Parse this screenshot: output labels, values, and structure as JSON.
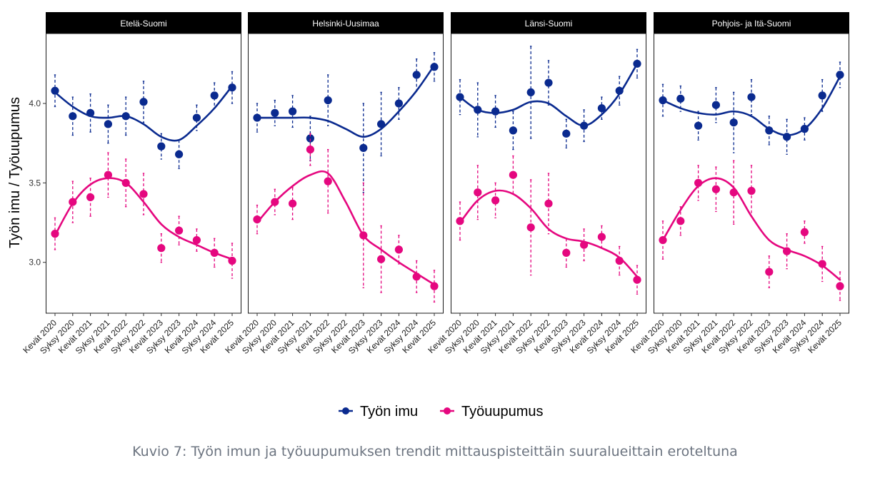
{
  "chart_data": {
    "type": "line",
    "ylabel": "Työn imu / Työuupumus",
    "xlabel": "",
    "ylim": [
      2.68,
      4.44
    ],
    "yticks": [
      3.0,
      3.5,
      4.0
    ],
    "ytick_labels": [
      "3.0",
      "3.5",
      "4.0"
    ],
    "grid": false,
    "legend_position": "bottom",
    "categories": [
      "Kevät 2020",
      "Syksy 2020",
      "Kevät 2021",
      "Syksy 2021",
      "Kevät 2022",
      "Syksy 2022",
      "Kevät 2023",
      "Syksy 2023",
      "Kevät 2024",
      "Syksy 2024",
      "Kevät 2025"
    ],
    "legend": [
      {
        "name": "Työn imu",
        "color": "#0a2a8f"
      },
      {
        "name": "Työuupumus",
        "color": "#e5077f"
      }
    ],
    "panels": [
      {
        "title": "Etelä-Suomi",
        "series": [
          {
            "name": "Työn imu",
            "values": [
              4.08,
              3.92,
              3.94,
              3.87,
              3.92,
              4.01,
              3.73,
              3.68,
              3.91,
              4.05,
              4.1
            ],
            "ci_half": [
              0.1,
              0.12,
              0.12,
              0.12,
              0.12,
              0.13,
              0.08,
              0.09,
              0.08,
              0.08,
              0.1
            ],
            "smooth": [
              4.07,
              3.98,
              3.92,
              3.91,
              3.92,
              3.87,
              3.79,
              3.77,
              3.86,
              3.97,
              4.11
            ]
          },
          {
            "name": "Työuupumus",
            "values": [
              3.18,
              3.38,
              3.41,
              3.55,
              3.5,
              3.43,
              3.09,
              3.2,
              3.14,
              3.06,
              3.01
            ],
            "ci_half": [
              0.1,
              0.13,
              0.12,
              0.14,
              0.15,
              0.13,
              0.09,
              0.09,
              0.07,
              0.09,
              0.11
            ],
            "smooth": [
              3.17,
              3.37,
              3.49,
              3.53,
              3.5,
              3.38,
              3.24,
              3.16,
              3.11,
              3.06,
              3.02
            ]
          }
        ]
      },
      {
        "title": "Helsinki-Uusimaa",
        "series": [
          {
            "name": "Työn imu",
            "values": [
              3.91,
              3.94,
              3.95,
              3.78,
              4.02,
              null,
              3.72,
              3.87,
              4.0,
              4.18,
              4.23
            ],
            "ci_half": [
              0.09,
              0.08,
              0.1,
              0.14,
              0.16,
              null,
              0.28,
              0.2,
              0.1,
              0.1,
              0.09
            ],
            "smooth": [
              3.91,
              3.91,
              3.91,
              3.91,
              3.89,
              3.84,
              3.79,
              3.84,
              3.95,
              4.08,
              4.24
            ]
          },
          {
            "name": "Työuupumus",
            "values": [
              3.27,
              3.38,
              3.37,
              3.71,
              3.51,
              null,
              3.17,
              3.02,
              3.08,
              2.91,
              2.85
            ],
            "ci_half": [
              0.09,
              0.08,
              0.1,
              0.1,
              0.2,
              null,
              0.33,
              0.21,
              0.09,
              0.1,
              0.1
            ],
            "smooth": [
              3.25,
              3.38,
              3.48,
              3.55,
              3.56,
              3.38,
              3.17,
              3.08,
              3.0,
              2.93,
              2.86
            ]
          }
        ]
      },
      {
        "title": "Länsi-Suomi",
        "series": [
          {
            "name": "Työn imu",
            "values": [
              4.04,
              3.96,
              3.95,
              3.83,
              4.07,
              4.13,
              3.81,
              3.86,
              3.97,
              4.08,
              4.25
            ],
            "ci_half": [
              0.11,
              0.17,
              0.1,
              0.12,
              0.29,
              0.14,
              0.09,
              0.1,
              0.07,
              0.09,
              0.09
            ],
            "smooth": [
              4.04,
              3.96,
              3.94,
              3.96,
              4.01,
              4.0,
              3.92,
              3.86,
              3.93,
              4.06,
              4.25
            ]
          },
          {
            "name": "Työuupumus",
            "values": [
              3.26,
              3.44,
              3.39,
              3.55,
              3.22,
              3.37,
              3.06,
              3.11,
              3.16,
              3.01,
              2.89
            ],
            "ci_half": [
              0.12,
              0.17,
              0.11,
              0.12,
              0.3,
              0.19,
              0.09,
              0.1,
              0.07,
              0.09,
              0.09
            ],
            "smooth": [
              3.25,
              3.39,
              3.45,
              3.43,
              3.34,
              3.21,
              3.15,
              3.13,
              3.09,
              3.03,
              2.91
            ]
          }
        ]
      },
      {
        "title": "Pohjois- ja Itä-Suomi",
        "series": [
          {
            "name": "Työn imu",
            "values": [
              4.02,
              4.03,
              3.86,
              3.99,
              3.88,
              4.04,
              3.83,
              3.79,
              3.84,
              4.05,
              4.18
            ],
            "ci_half": [
              0.1,
              0.08,
              0.09,
              0.11,
              0.19,
              0.11,
              0.09,
              0.11,
              0.07,
              0.1,
              0.08
            ],
            "smooth": [
              4.02,
              3.97,
              3.94,
              3.93,
              3.95,
              3.92,
              3.84,
              3.8,
              3.84,
              3.97,
              4.17
            ]
          },
          {
            "name": "Työuupumus",
            "values": [
              3.14,
              3.26,
              3.5,
              3.46,
              3.44,
              3.45,
              2.94,
              3.07,
              3.19,
              2.99,
              2.85
            ],
            "ci_half": [
              0.12,
              0.09,
              0.11,
              0.14,
              0.2,
              0.16,
              0.1,
              0.11,
              0.07,
              0.11,
              0.09
            ],
            "smooth": [
              3.14,
              3.33,
              3.48,
              3.53,
              3.47,
              3.29,
              3.14,
              3.08,
              3.04,
              2.98,
              2.89
            ]
          }
        ]
      }
    ]
  },
  "caption": "Kuvio 7: Työn imun ja työuupumuksen trendit mittauspisteittäin suuralueittain eroteltuna"
}
